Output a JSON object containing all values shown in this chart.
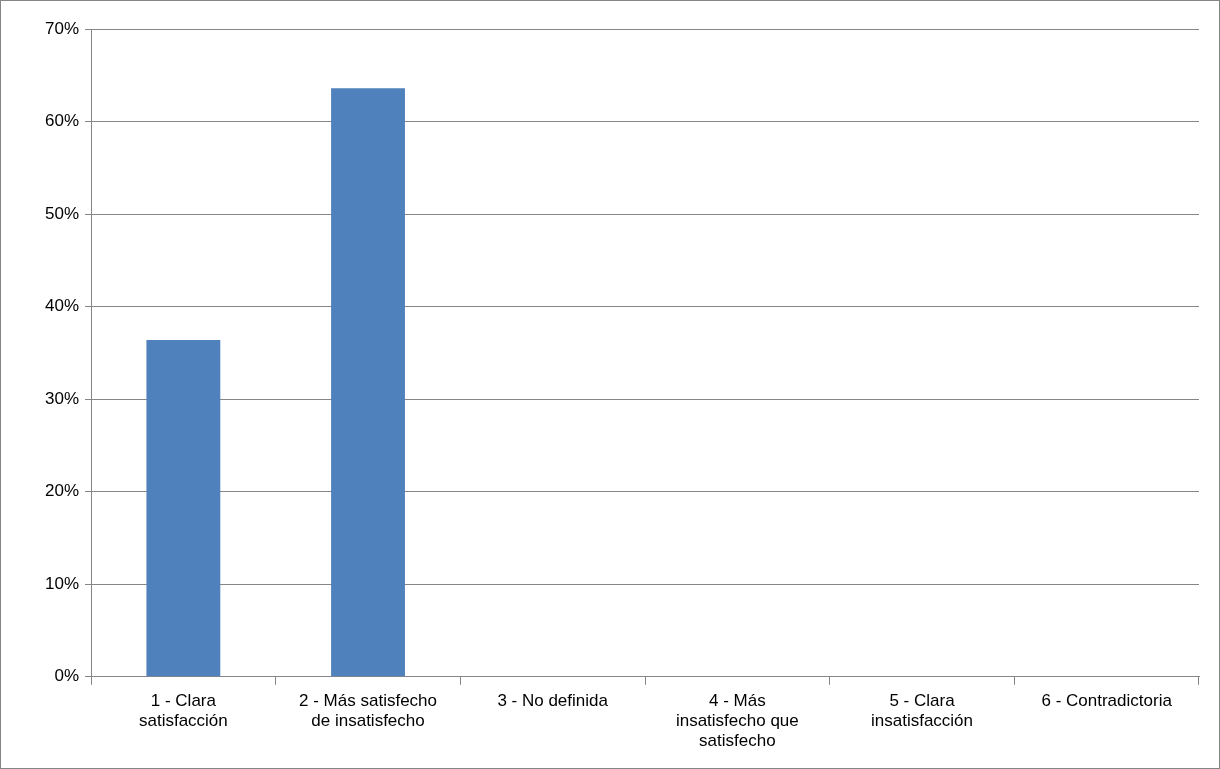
{
  "chart_data": {
    "type": "bar",
    "categories": [
      "1 - Clara satisfacción",
      "2 - Más satisfecho de insatisfecho",
      "3 - No definida",
      "4 - Más insatisfecho que satisfecho",
      "5 - Clara insatisfacción",
      "6 - Contradictoria"
    ],
    "values": [
      36.4,
      63.6,
      0,
      0,
      0,
      0
    ],
    "color": "#4f81bd",
    "ylim": [
      0,
      70
    ],
    "yticks": [
      {
        "value": 0,
        "label": "0%"
      },
      {
        "value": 10,
        "label": "10%"
      },
      {
        "value": 20,
        "label": "20%"
      },
      {
        "value": 30,
        "label": "30%"
      },
      {
        "value": 40,
        "label": "40%"
      },
      {
        "value": 50,
        "label": "50%"
      },
      {
        "value": 60,
        "label": "60%"
      },
      {
        "value": 70,
        "label": "70%"
      }
    ],
    "grid": "y"
  }
}
